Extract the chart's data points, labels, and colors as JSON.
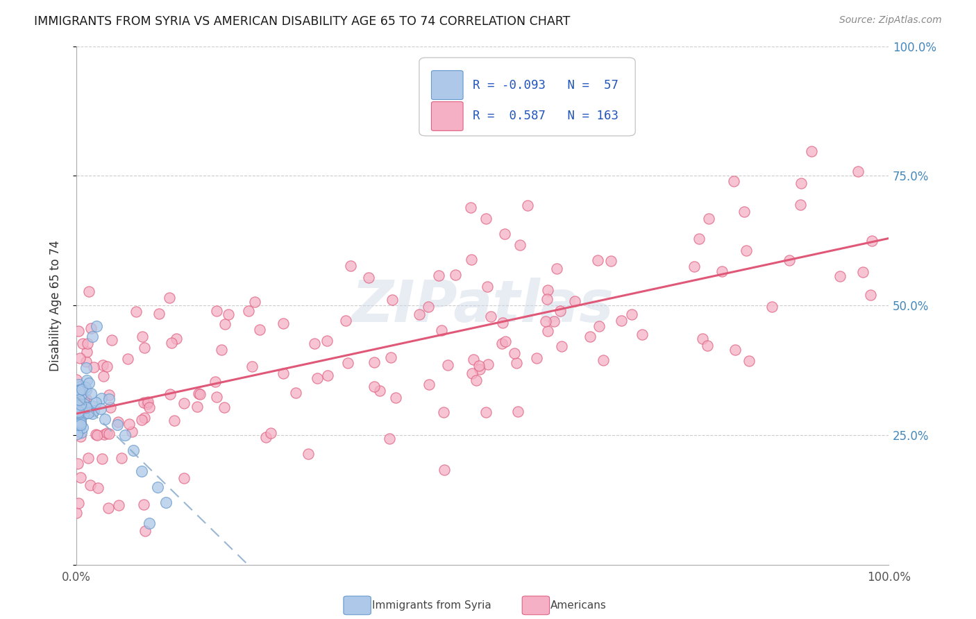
{
  "title": "IMMIGRANTS FROM SYRIA VS AMERICAN DISABILITY AGE 65 TO 74 CORRELATION CHART",
  "source": "Source: ZipAtlas.com",
  "ylabel": "Disability Age 65 to 74",
  "xlim": [
    0,
    1.0
  ],
  "ylim": [
    0,
    1.0
  ],
  "legend_r_syria": "-0.093",
  "legend_n_syria": "57",
  "legend_r_americans": "0.587",
  "legend_n_americans": "163",
  "syria_fill": "#adc8e8",
  "syria_edge": "#6699cc",
  "americans_fill": "#f5b0c5",
  "americans_edge": "#e06080",
  "americans_line_color": "#e05878",
  "syria_line_color": "#88aacc",
  "background_color": "#ffffff",
  "watermark_text": "ZIPatlas",
  "n_syria": 57,
  "n_americans": 163
}
